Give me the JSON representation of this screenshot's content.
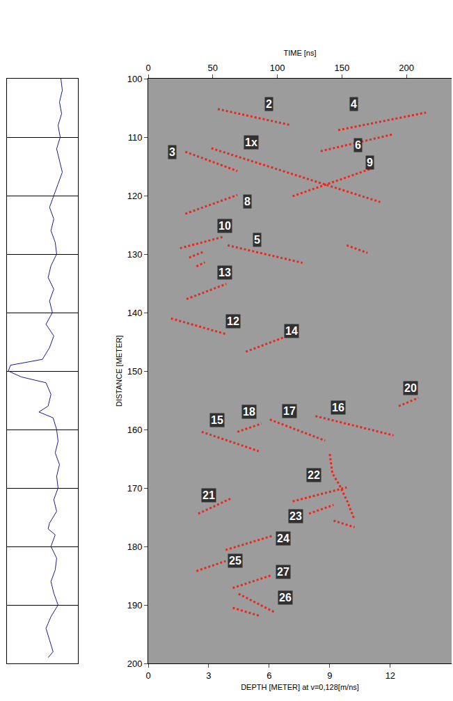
{
  "chart_data": [
    {
      "type": "line",
      "tick_labels": false,
      "grid": true,
      "color": "#1a1a8c",
      "xlim": [
        0,
        1
      ],
      "ylim": [
        200,
        100
      ],
      "yticks": [
        100,
        110,
        120,
        130,
        140,
        150,
        160,
        170,
        180,
        190,
        200
      ],
      "x": [
        0.76,
        0.78,
        0.74,
        0.77,
        0.72,
        0.75,
        0.7,
        0.74,
        0.78,
        0.72,
        0.66,
        0.6,
        0.66,
        0.62,
        0.68,
        0.7,
        0.62,
        0.58,
        0.66,
        0.6,
        0.64,
        0.55,
        0.66,
        0.6,
        0.5,
        0.05,
        0.02,
        0.2,
        0.55,
        0.62,
        0.58,
        0.45,
        0.65,
        0.7,
        0.72,
        0.68,
        0.74,
        0.7,
        0.72,
        0.66,
        0.7,
        0.6,
        0.58,
        0.68,
        0.62,
        0.7,
        0.68,
        0.62,
        0.66,
        0.72,
        0.62,
        0.55,
        0.6,
        0.65,
        0.58
      ],
      "y": [
        100,
        102,
        104,
        106,
        108,
        110,
        112,
        114,
        116,
        118,
        120,
        122,
        124,
        126,
        128,
        130,
        132,
        134,
        136,
        138,
        140,
        142,
        144,
        146,
        148,
        149,
        150,
        151,
        152,
        154,
        156,
        157,
        158,
        160,
        162,
        164,
        166,
        168,
        170,
        172,
        174,
        176,
        177,
        178,
        180,
        182,
        184,
        186,
        188,
        190,
        192,
        194,
        196,
        198,
        199
      ]
    },
    {
      "type": "line",
      "color": "#e8281e",
      "line_style": "dot",
      "xlabel": "DEPTH [METER] at v=0,128[m/ns]",
      "x2label": "TIME [ns]",
      "ylabel": "DISTANCE [METER]",
      "xlim": [
        0,
        15.04
      ],
      "xticks": [
        0,
        3,
        6,
        9,
        12
      ],
      "x2lim": [
        0,
        235
      ],
      "x2ticks": [
        0,
        50,
        100,
        150,
        200
      ],
      "ylim": [
        200,
        100
      ],
      "yticks": [
        100,
        110,
        120,
        130,
        140,
        150,
        160,
        170,
        180,
        190,
        200
      ],
      "series": [
        {
          "x": [
            3.45,
            7.0
          ],
          "values": [
            105.2,
            107.9
          ]
        },
        {
          "x": [
            9.42,
            13.77
          ],
          "values": [
            108.8,
            105.8
          ]
        },
        {
          "x": [
            8.55,
            12.16
          ],
          "values": [
            112.4,
            109.5
          ]
        },
        {
          "x": [
            3.13,
            11.5
          ],
          "values": [
            111.9,
            121.1
          ]
        },
        {
          "x": [
            1.84,
            4.42
          ],
          "values": [
            112.5,
            115.8
          ]
        },
        {
          "x": [
            7.16,
            10.97
          ],
          "values": [
            120.1,
            115.5
          ]
        },
        {
          "x": [
            1.84,
            4.42
          ],
          "values": [
            123.1,
            119.9
          ]
        },
        {
          "x": [
            1.58,
            3.77
          ],
          "values": [
            129.0,
            127.0
          ]
        },
        {
          "x": [
            2.03,
            2.74
          ],
          "values": [
            130.6,
            129.6
          ]
        },
        {
          "x": [
            2.39,
            2.81
          ],
          "values": [
            132.1,
            131.4
          ]
        },
        {
          "x": [
            3.94,
            7.65
          ],
          "values": [
            128.5,
            131.5
          ]
        },
        {
          "x": [
            9.84,
            10.87
          ],
          "values": [
            128.5,
            129.8
          ]
        },
        {
          "x": [
            1.9,
            3.87
          ],
          "values": [
            137.7,
            135.1
          ]
        },
        {
          "x": [
            1.13,
            3.87
          ],
          "values": [
            141.0,
            143.7
          ]
        },
        {
          "x": [
            4.84,
            6.68
          ],
          "values": [
            146.7,
            144.3
          ]
        },
        {
          "x": [
            12.42,
            13.39
          ],
          "values": [
            156.0,
            154.6
          ]
        },
        {
          "x": [
            2.65,
            5.48
          ],
          "values": [
            160.4,
            163.7
          ]
        },
        {
          "x": [
            4.42,
            5.61
          ],
          "values": [
            160.4,
            159.0
          ]
        },
        {
          "x": [
            6.03,
            8.77
          ],
          "values": [
            158.3,
            161.9
          ]
        },
        {
          "x": [
            8.29,
            12.16
          ],
          "values": [
            157.7,
            161.0
          ]
        },
        {
          "x": [
            9.0,
            9.13,
            9.48,
            9.87,
            10.2
          ],
          "values": [
            164.2,
            167.5,
            169.5,
            172.3,
            175.2
          ]
        },
        {
          "x": [
            7.16,
            9.84
          ],
          "values": [
            172.3,
            169.9
          ]
        },
        {
          "x": [
            7.97,
            9.19
          ],
          "values": [
            174.4,
            172.9
          ]
        },
        {
          "x": [
            9.19,
            10.23
          ],
          "values": [
            175.6,
            176.7
          ]
        },
        {
          "x": [
            2.48,
            4.16
          ],
          "values": [
            174.4,
            171.7
          ]
        },
        {
          "x": [
            3.84,
            6.13
          ],
          "values": [
            180.6,
            178.2
          ]
        },
        {
          "x": [
            2.39,
            3.84
          ],
          "values": [
            184.2,
            182.5
          ]
        },
        {
          "x": [
            4.19,
            6.13
          ],
          "values": [
            187.1,
            184.9
          ]
        },
        {
          "x": [
            4.48,
            6.29
          ],
          "values": [
            188.1,
            191.3
          ]
        },
        {
          "x": [
            4.19,
            5.55
          ],
          "values": [
            190.5,
            191.9
          ]
        }
      ],
      "annotations": [
        {
          "text": "2",
          "x": 6.0,
          "y": 104.4
        },
        {
          "text": "4",
          "x": 10.2,
          "y": 104.4
        },
        {
          "text": "6",
          "x": 10.4,
          "y": 111.4
        },
        {
          "text": "1x",
          "x": 5.1,
          "y": 110.9
        },
        {
          "text": "3",
          "x": 1.2,
          "y": 112.6
        },
        {
          "text": "9",
          "x": 11.0,
          "y": 114.4
        },
        {
          "text": "8",
          "x": 4.9,
          "y": 121.0
        },
        {
          "text": "10",
          "x": 3.8,
          "y": 125.2
        },
        {
          "text": "5",
          "x": 5.4,
          "y": 127.6
        },
        {
          "text": "13",
          "x": 3.8,
          "y": 133.2
        },
        {
          "text": "12",
          "x": 4.2,
          "y": 141.5
        },
        {
          "text": "14",
          "x": 7.1,
          "y": 143.1
        },
        {
          "text": "20",
          "x": 13.0,
          "y": 152.9
        },
        {
          "text": "15",
          "x": 3.4,
          "y": 158.4
        },
        {
          "text": "18",
          "x": 5.0,
          "y": 157.0
        },
        {
          "text": "17",
          "x": 7.0,
          "y": 156.8
        },
        {
          "text": "16",
          "x": 9.4,
          "y": 156.3
        },
        {
          "text": "22",
          "x": 8.2,
          "y": 167.8
        },
        {
          "text": "23",
          "x": 7.3,
          "y": 174.8
        },
        {
          "text": "21",
          "x": 3.0,
          "y": 171.2
        },
        {
          "text": "24",
          "x": 6.7,
          "y": 178.6
        },
        {
          "text": "25",
          "x": 4.3,
          "y": 182.4
        },
        {
          "text": "27",
          "x": 6.7,
          "y": 184.4
        },
        {
          "text": "26",
          "x": 6.8,
          "y": 188.8
        }
      ]
    }
  ]
}
